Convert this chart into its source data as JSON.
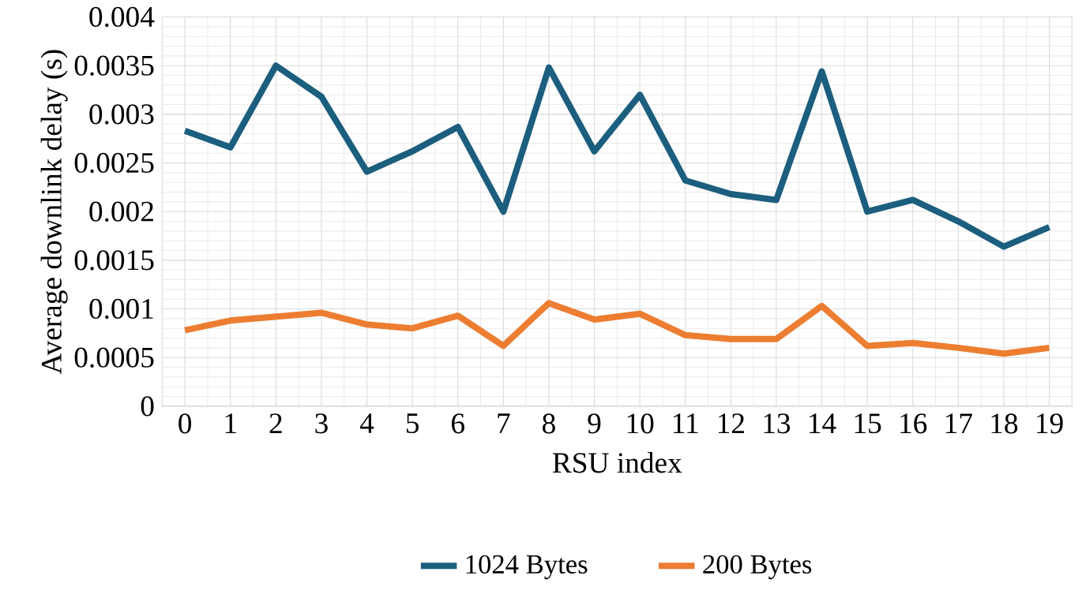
{
  "chart_data": {
    "type": "line",
    "xlabel": "RSU index",
    "ylabel": "Average downlink delay (s)",
    "categories": [
      "0",
      "1",
      "2",
      "3",
      "4",
      "5",
      "6",
      "7",
      "8",
      "9",
      "10",
      "11",
      "12",
      "13",
      "14",
      "15",
      "16",
      "17",
      "18",
      "19"
    ],
    "series": [
      {
        "name": "1024 Bytes",
        "color": "#1b5e7e",
        "values": [
          0.00283,
          0.00266,
          0.0035,
          0.00318,
          0.00241,
          0.00262,
          0.00287,
          0.002,
          0.00348,
          0.00262,
          0.0032,
          0.00232,
          0.00218,
          0.00212,
          0.00344,
          0.002,
          0.00212,
          0.0019,
          0.00164,
          0.00184
        ]
      },
      {
        "name": "200 Bytes",
        "color": "#ed7d31",
        "values": [
          0.00078,
          0.00088,
          0.00092,
          0.00096,
          0.00084,
          0.0008,
          0.00093,
          0.00062,
          0.00106,
          0.00089,
          0.00095,
          0.00073,
          0.00069,
          0.00069,
          0.00103,
          0.00062,
          0.00065,
          0.0006,
          0.00054,
          0.0006
        ]
      }
    ],
    "ylim": [
      0,
      0.004
    ],
    "yticks": [
      0,
      0.0005,
      0.001,
      0.0015,
      0.002,
      0.0025,
      0.003,
      0.0035,
      0.004
    ],
    "grid": true,
    "legend": "bottom",
    "marker": "none",
    "line_style": "solid"
  }
}
